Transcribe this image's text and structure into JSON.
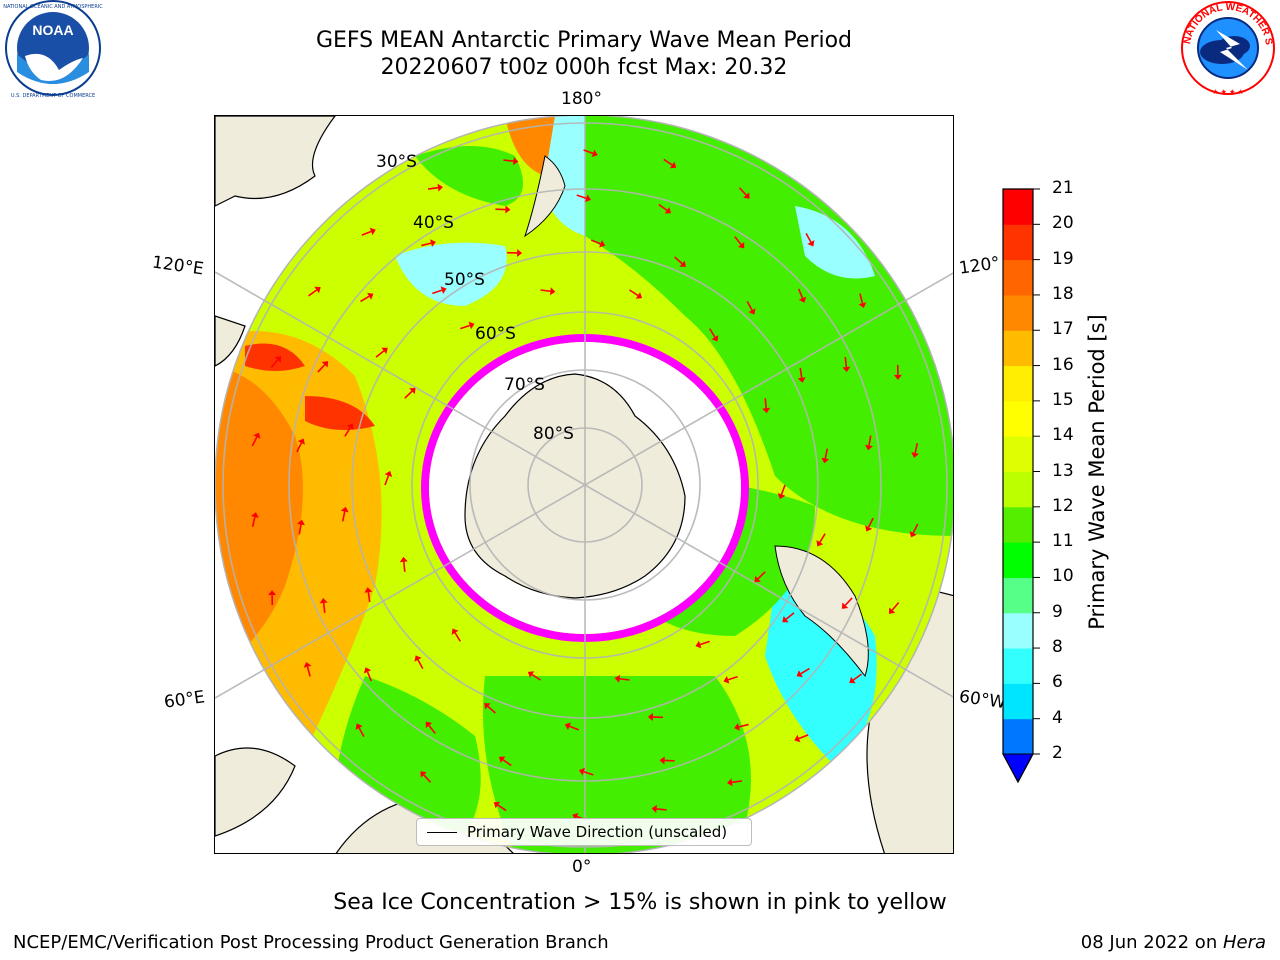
{
  "title": {
    "line1": "GEFS MEAN Antarctic Primary Wave Mean Period",
    "line2": "20220607 t00z 000h fcst   Max: 20.32"
  },
  "logos": {
    "left": {
      "icon": "noaa-logo",
      "text": "NOAA",
      "ring_text": "NATIONAL OCEANIC AND ATMOSPHERIC ADMINISTRATION · U.S. DEPARTMENT OF COMMERCE"
    },
    "right": {
      "icon": "nws-logo",
      "ring_text": "NATIONAL WEATHER SERVICE"
    }
  },
  "map": {
    "projection": "south-polar-stereographic",
    "longitude_labels": {
      "top": "180°",
      "bottom": "0°",
      "upper_left": "120°E",
      "upper_right": "120°",
      "lower_left": "60°E",
      "lower_right": "60°W"
    },
    "latitude_labels": [
      "30°S",
      "40°S",
      "50°S",
      "60°S",
      "70°S",
      "80°S"
    ],
    "legend_label": "Primary Wave Direction (unscaled)",
    "colors": {
      "land": "#efecdc",
      "ice": "#ffffff",
      "arrow": "#ff0000",
      "grid": "#b4b4b4",
      "ice_edge": "#ff00ff"
    }
  },
  "colorbar": {
    "label": "Primary Wave Mean Period [s]",
    "ticks": [
      "2",
      "4",
      "6",
      "8",
      "9",
      "10",
      "11",
      "12",
      "13",
      "14",
      "15",
      "16",
      "17",
      "18",
      "19",
      "20",
      "21"
    ],
    "colors": [
      "#0077ff",
      "#00e5ff",
      "#33ffff",
      "#99ffff",
      "#55ff88",
      "#00ff00",
      "#55ee00",
      "#bbff00",
      "#ddff00",
      "#ffff00",
      "#ffee00",
      "#ffbb00",
      "#ff8800",
      "#ff6600",
      "#ff3300",
      "#ff0000"
    ],
    "extend_below_color": "#0000ff"
  },
  "footer": {
    "note": "Sea Ice Concentration > 15% is shown in pink to yellow",
    "left": "NCEP/EMC/Verification Post Processing Product Generation Branch",
    "right_date": "08 Jun 2022 on ",
    "right_host": "Hera"
  }
}
